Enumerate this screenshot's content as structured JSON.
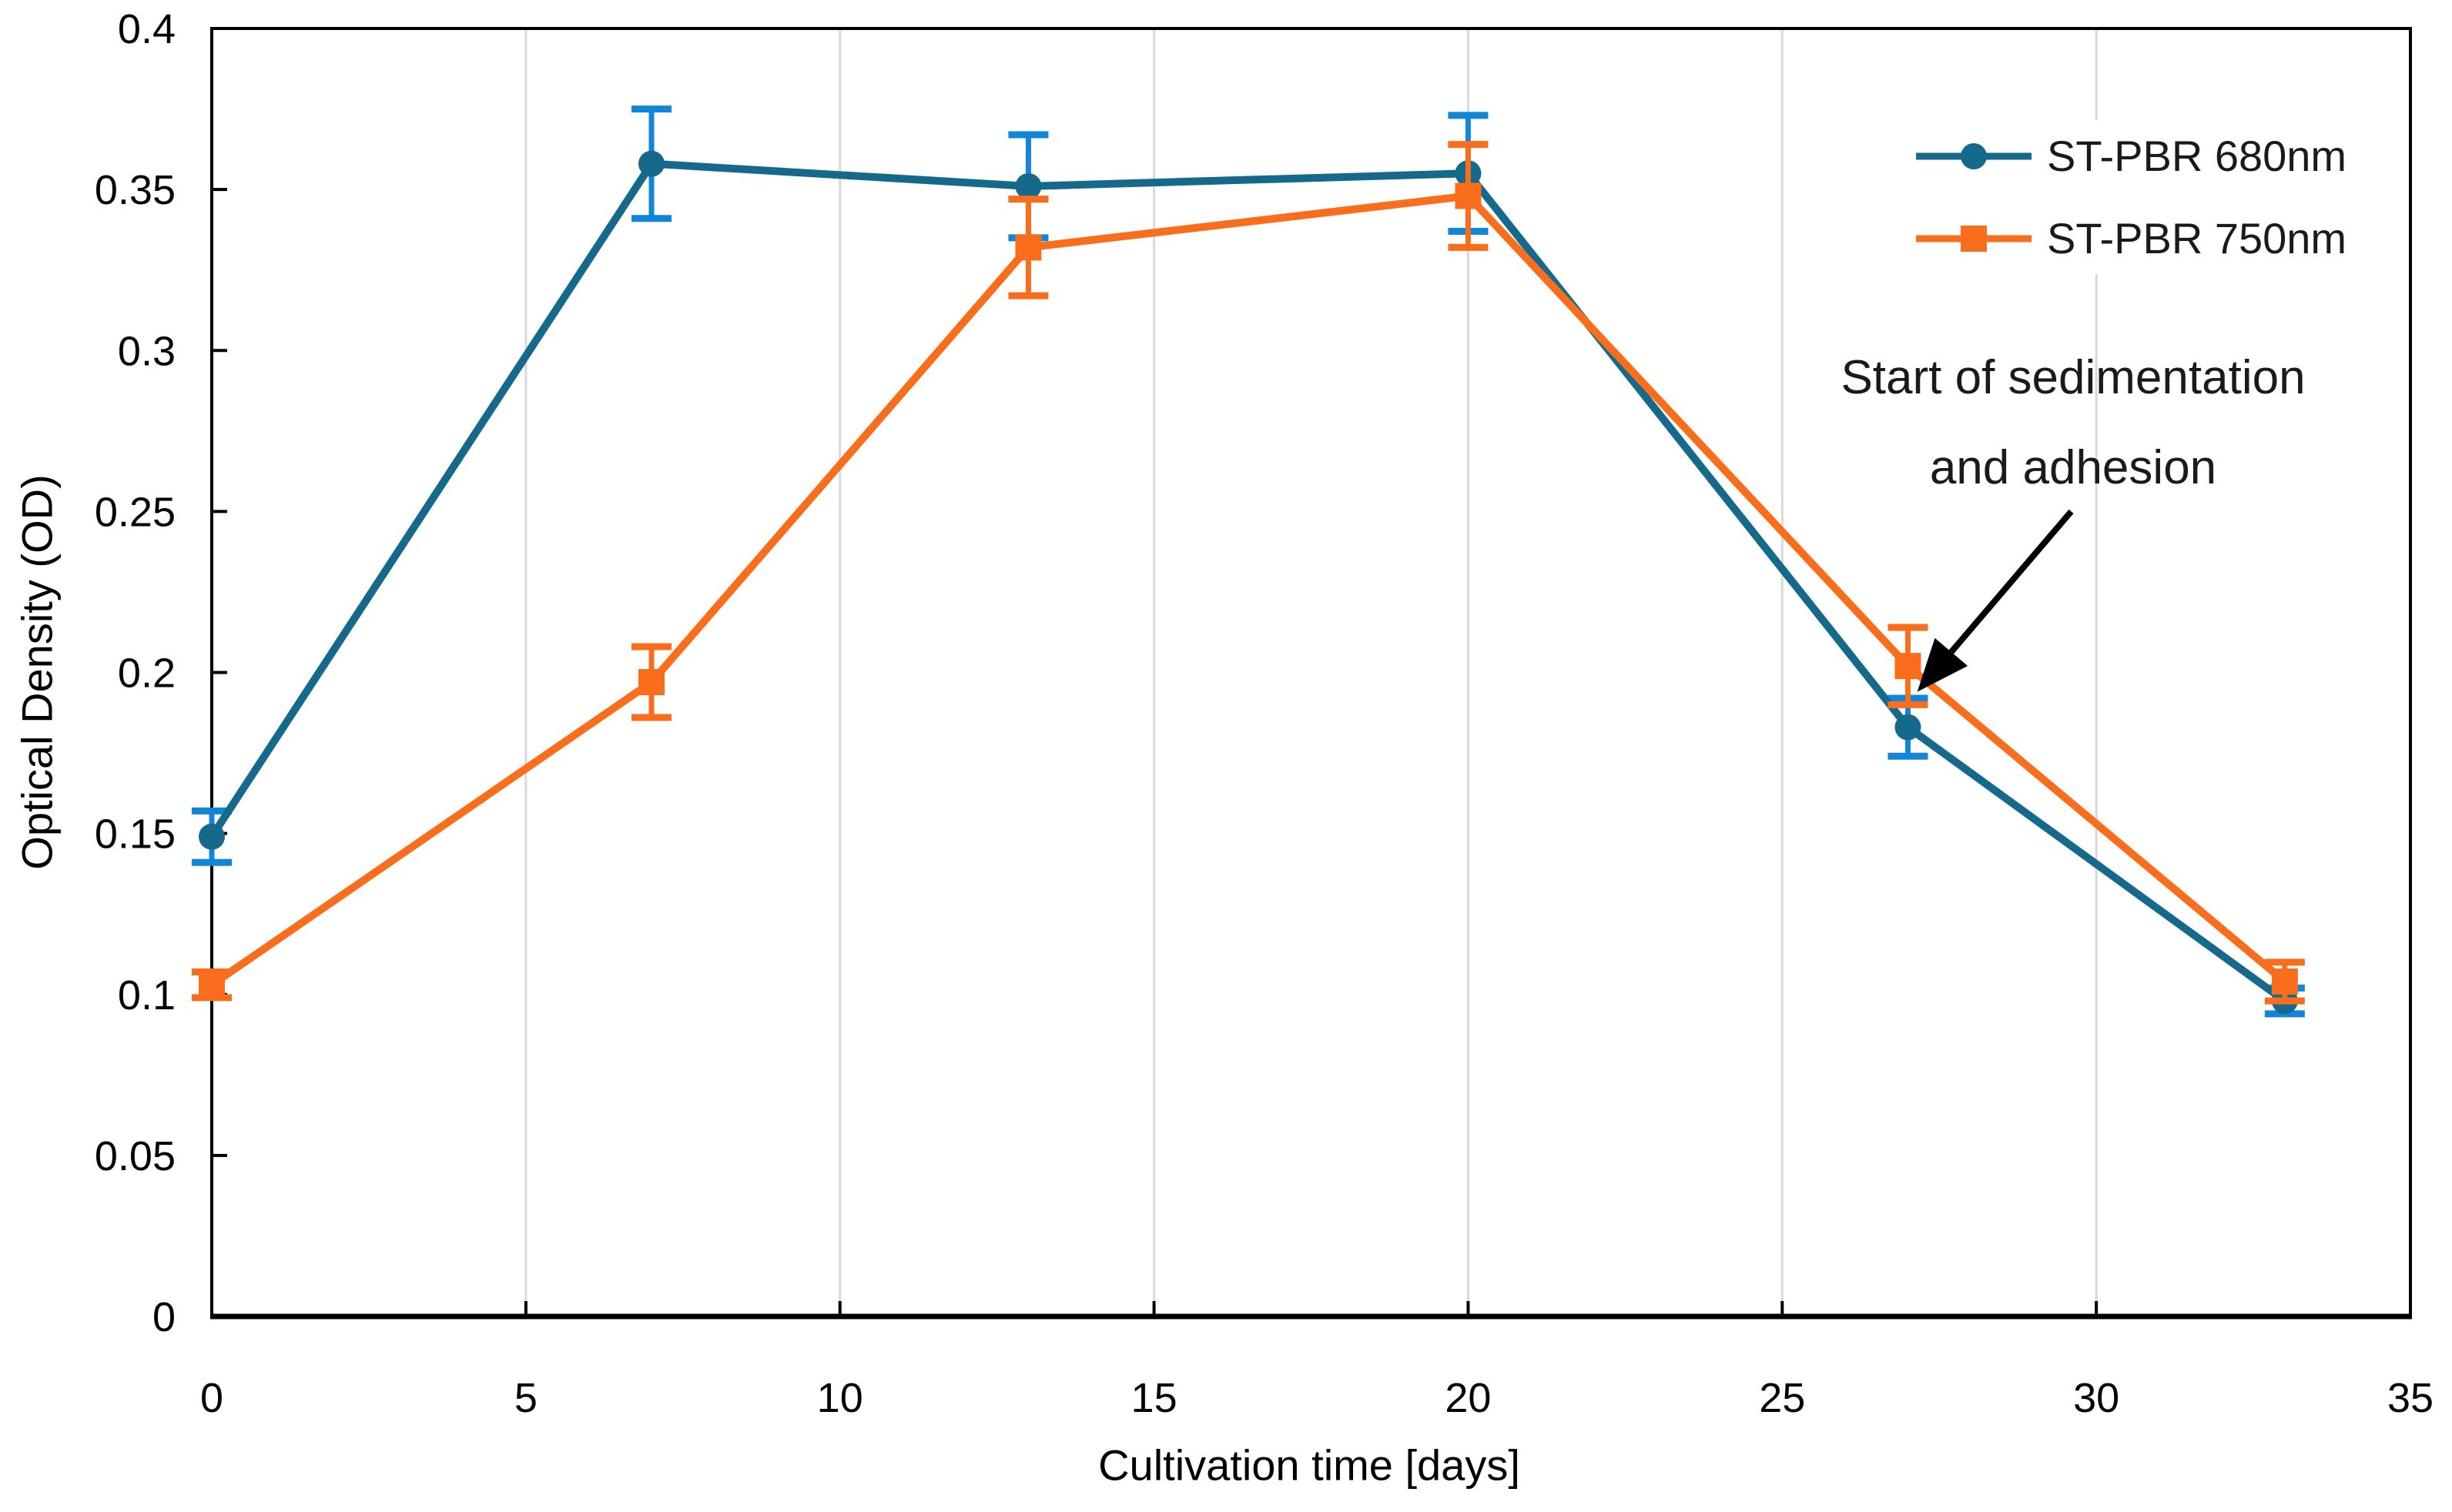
{
  "chart_data": {
    "type": "line",
    "title": "",
    "xlabel": "Cultivation time [days]",
    "ylabel": "Optical Density (OD)",
    "xlim": [
      0,
      35
    ],
    "ylim": [
      0,
      0.4
    ],
    "x_ticks": [
      0,
      5,
      10,
      15,
      20,
      25,
      30,
      35
    ],
    "y_ticks": [
      0,
      0.05,
      0.1,
      0.15,
      0.2,
      0.25,
      0.3,
      0.35,
      0.4
    ],
    "y_tick_labels": [
      "0",
      "0.05",
      "0.1",
      "0.15",
      "0.2",
      "0.25",
      "0.3",
      "0.35",
      "0.4"
    ],
    "grid": "vertical-only",
    "gridline_color": "#D9D9D9",
    "frame_color": "#000000",
    "legend_position": "top-right-inside",
    "x": [
      0,
      7,
      13,
      20,
      27,
      33
    ],
    "series": [
      {
        "name": "ST-PBR 680nm",
        "marker": "circle",
        "color": "#156A8C",
        "error_color": "#1185D7",
        "values": [
          0.149,
          0.358,
          0.351,
          0.355,
          0.183,
          0.098
        ],
        "errors": [
          0.008,
          0.017,
          0.016,
          0.018,
          0.009,
          0.004
        ]
      },
      {
        "name": "ST-PBR 750nm",
        "marker": "square",
        "color": "#F96E1C",
        "error_color": "#F96E1C",
        "values": [
          0.103,
          0.197,
          0.332,
          0.348,
          0.202,
          0.104
        ],
        "errors": [
          0.004,
          0.011,
          0.015,
          0.016,
          0.012,
          0.006
        ]
      }
    ],
    "annotation": {
      "line1": "Start of sedimentation",
      "line2": "and adhesion",
      "arrow_from": [
        29.6,
        0.25
      ],
      "arrow_to": [
        27.15,
        0.194
      ],
      "arrow_color": "#000000"
    }
  }
}
